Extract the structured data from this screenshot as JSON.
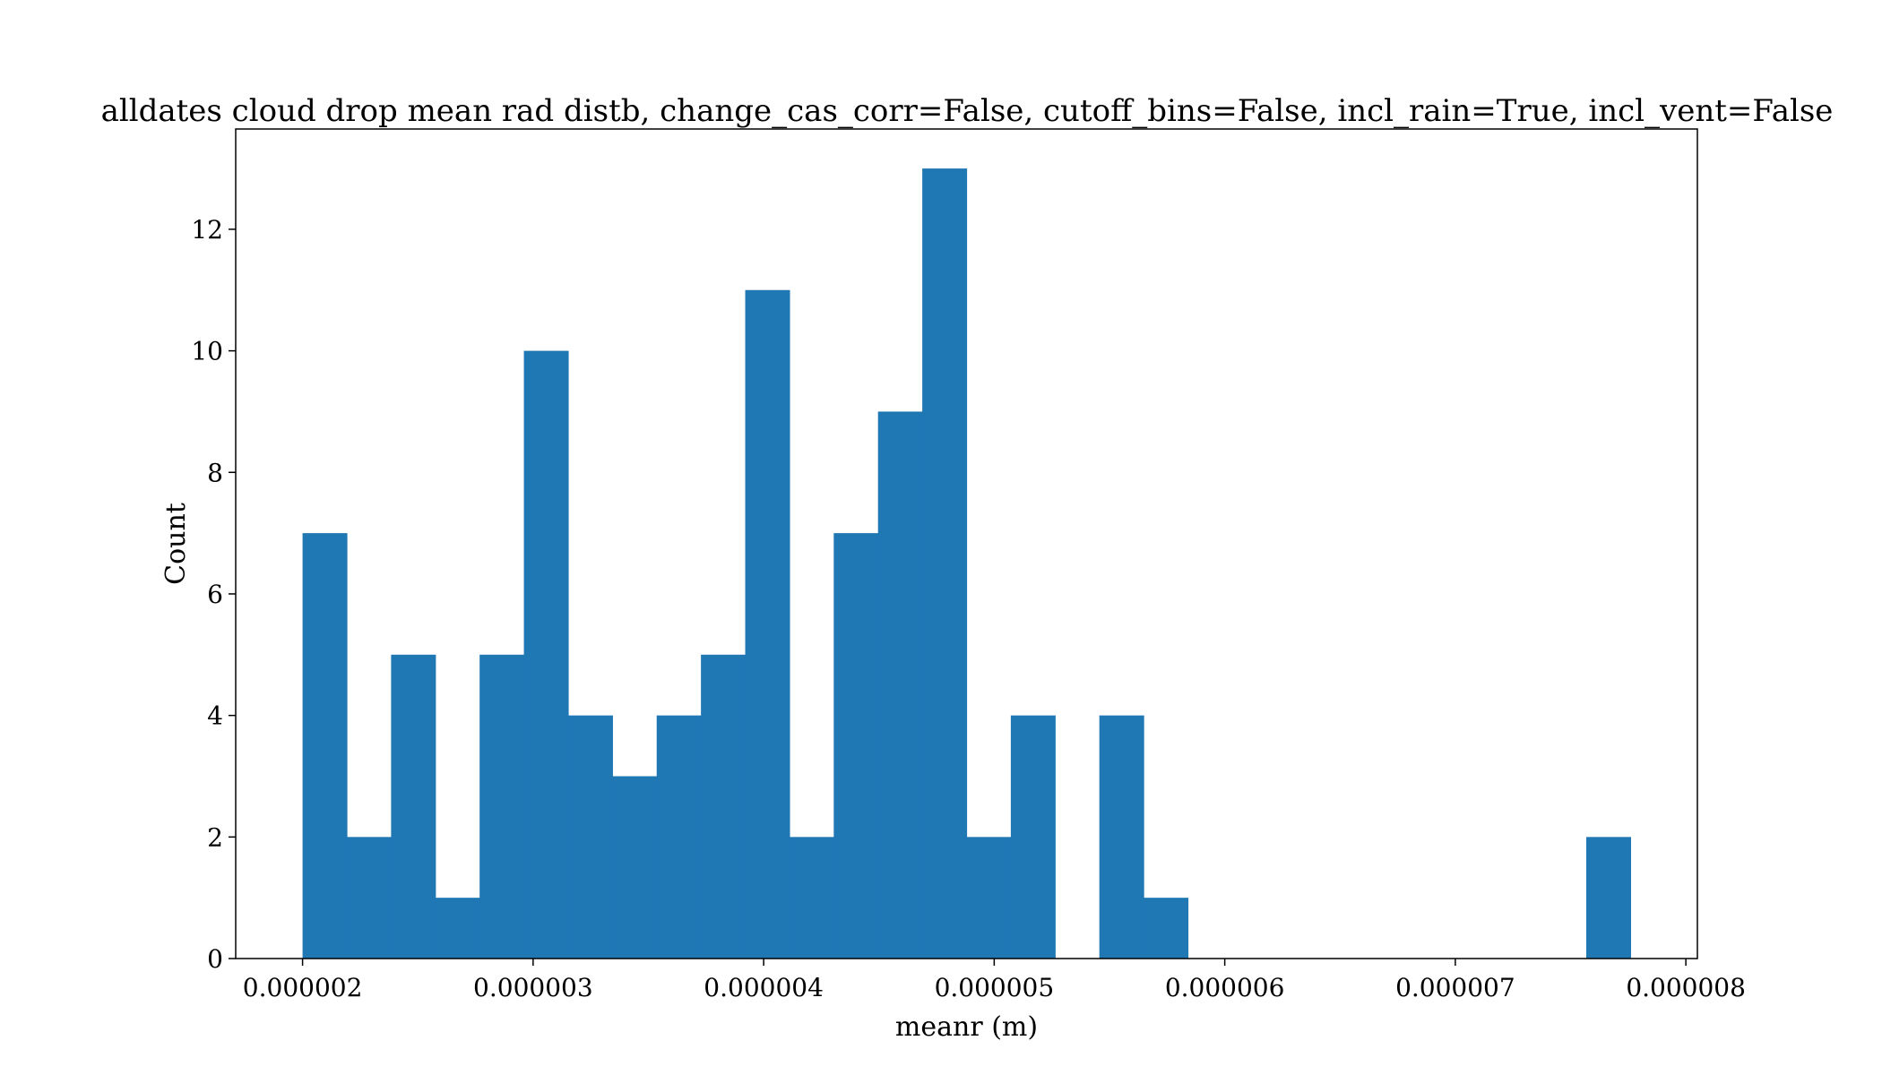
{
  "chart_data": {
    "type": "bar",
    "title": "alldates cloud drop mean rad distb, change_cas_corr=False, cutoff_bins=False, incl_rain=True, incl_vent=False",
    "xlabel": "meanr (m)",
    "ylabel": "Count",
    "xlim": [
      1.71e-06,
      8.05e-06
    ],
    "ylim": [
      0,
      13.65
    ],
    "x_ticks": [
      2e-06,
      3e-06,
      4e-06,
      5e-06,
      6e-06,
      7e-06,
      8e-06
    ],
    "x_tick_labels": [
      "0.000002",
      "0.000003",
      "0.000004",
      "0.000005",
      "0.000006",
      "0.000007",
      "0.000008"
    ],
    "y_ticks": [
      0,
      2,
      4,
      6,
      8,
      10,
      12
    ],
    "y_tick_labels": [
      "0",
      "2",
      "4",
      "6",
      "8",
      "10",
      "12"
    ],
    "bin_start": 2e-06,
    "bin_width": 1.92e-07,
    "values": [
      7,
      2,
      5,
      1,
      5,
      10,
      4,
      3,
      4,
      5,
      11,
      2,
      7,
      9,
      13,
      2,
      4,
      0,
      4,
      1,
      0,
      0,
      0,
      0,
      0,
      0,
      0,
      0,
      0,
      2
    ],
    "bar_color": "#1f77b4",
    "grid": false,
    "legend": "none"
  }
}
